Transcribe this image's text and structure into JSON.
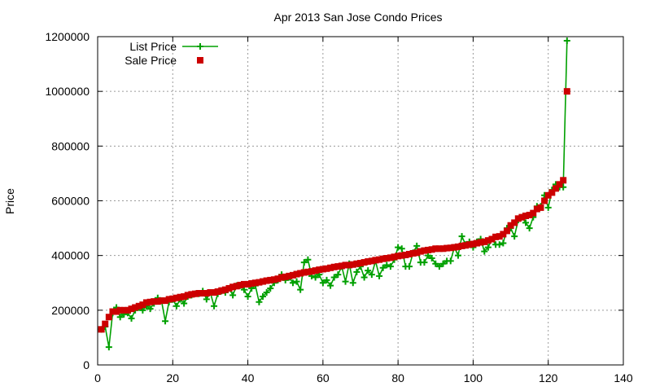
{
  "chart_data": {
    "type": "line",
    "title": "Apr 2013 San Jose Condo Prices",
    "xlabel": "",
    "ylabel": "Price",
    "xlim": [
      0,
      140
    ],
    "ylim": [
      0,
      1200000
    ],
    "x_ticks": [
      0,
      20,
      40,
      60,
      80,
      100,
      120,
      140
    ],
    "y_ticks": [
      0,
      200000,
      400000,
      600000,
      800000,
      1000000,
      1200000
    ],
    "grid": true,
    "legend_position": "top-left",
    "x": [
      1,
      2,
      3,
      4,
      5,
      6,
      7,
      8,
      9,
      10,
      11,
      12,
      13,
      14,
      15,
      16,
      17,
      18,
      19,
      20,
      21,
      22,
      23,
      24,
      25,
      26,
      27,
      28,
      29,
      30,
      31,
      32,
      33,
      34,
      35,
      36,
      37,
      38,
      39,
      40,
      41,
      42,
      43,
      44,
      45,
      46,
      47,
      48,
      49,
      50,
      51,
      52,
      53,
      54,
      55,
      56,
      57,
      58,
      59,
      60,
      61,
      62,
      63,
      64,
      65,
      66,
      67,
      68,
      69,
      70,
      71,
      72,
      73,
      74,
      75,
      76,
      77,
      78,
      79,
      80,
      81,
      82,
      83,
      84,
      85,
      86,
      87,
      88,
      89,
      90,
      91,
      92,
      93,
      94,
      95,
      96,
      97,
      98,
      99,
      100,
      101,
      102,
      103,
      104,
      105,
      106,
      107,
      108,
      109,
      110,
      111,
      112,
      113,
      114,
      115,
      116,
      117,
      118,
      119,
      120,
      121,
      122,
      123,
      124,
      125
    ],
    "series": [
      {
        "name": "List Price",
        "color": "#00a000",
        "marker": "plus",
        "line": true,
        "values": [
          130000,
          140000,
          65000,
          190000,
          210000,
          175000,
          185000,
          190000,
          170000,
          200000,
          210000,
          200000,
          215000,
          205000,
          225000,
          245000,
          235000,
          160000,
          230000,
          240000,
          215000,
          240000,
          225000,
          250000,
          255000,
          260000,
          260000,
          270000,
          240000,
          265000,
          215000,
          260000,
          270000,
          265000,
          280000,
          255000,
          290000,
          290000,
          275000,
          250000,
          280000,
          290000,
          230000,
          250000,
          265000,
          280000,
          300000,
          310000,
          330000,
          310000,
          320000,
          300000,
          305000,
          275000,
          375000,
          385000,
          325000,
          320000,
          330000,
          300000,
          310000,
          290000,
          320000,
          330000,
          360000,
          305000,
          370000,
          300000,
          340000,
          360000,
          320000,
          345000,
          330000,
          380000,
          325000,
          355000,
          365000,
          360000,
          385000,
          430000,
          425000,
          360000,
          360000,
          410000,
          435000,
          375000,
          375000,
          400000,
          390000,
          370000,
          360000,
          370000,
          380000,
          380000,
          430000,
          400000,
          470000,
          440000,
          450000,
          430000,
          450000,
          460000,
          415000,
          430000,
          460000,
          440000,
          440000,
          445000,
          500000,
          500000,
          470000,
          530000,
          540000,
          520000,
          500000,
          540000,
          580000,
          580000,
          620000,
          575000,
          640000,
          660000,
          650000,
          650000,
          1185000
        ]
      },
      {
        "name": "Sale Price",
        "color": "#cc0000",
        "marker": "square",
        "line": false,
        "values": [
          130000,
          150000,
          175000,
          195000,
          195000,
          200000,
          200000,
          200000,
          205000,
          210000,
          215000,
          220000,
          228000,
          230000,
          232000,
          232000,
          235000,
          235000,
          240000,
          242000,
          245000,
          248000,
          250000,
          255000,
          258000,
          260000,
          262000,
          262000,
          262000,
          265000,
          265000,
          268000,
          272000,
          275000,
          280000,
          285000,
          288000,
          292000,
          295000,
          295000,
          298000,
          300000,
          302000,
          305000,
          308000,
          310000,
          312000,
          315000,
          320000,
          322000,
          325000,
          328000,
          332000,
          335000,
          338000,
          340000,
          342000,
          345000,
          348000,
          350000,
          352000,
          355000,
          358000,
          360000,
          362000,
          365000,
          365000,
          367000,
          370000,
          372000,
          375000,
          378000,
          380000,
          383000,
          385000,
          388000,
          390000,
          392000,
          395000,
          398000,
          400000,
          402000,
          405000,
          408000,
          410000,
          415000,
          418000,
          420000,
          422000,
          425000,
          425000,
          425000,
          427000,
          428000,
          430000,
          432000,
          435000,
          437000,
          440000,
          442000,
          445000,
          448000,
          450000,
          455000,
          460000,
          468000,
          470000,
          478000,
          490000,
          510000,
          520000,
          535000,
          540000,
          545000,
          548000,
          555000,
          570000,
          575000,
          600000,
          620000,
          630000,
          645000,
          660000,
          675000,
          1000000
        ]
      }
    ]
  }
}
